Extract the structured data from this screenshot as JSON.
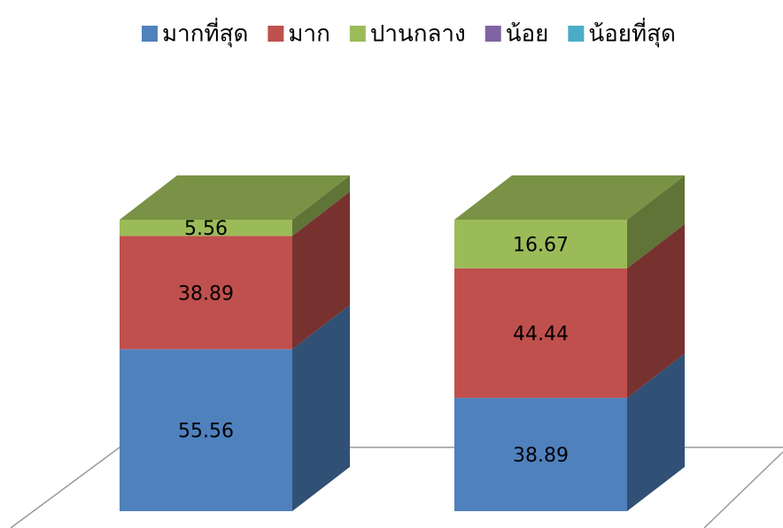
{
  "chart_data": {
    "type": "bar3d_stacked",
    "categories": [
      null,
      null
    ],
    "series": [
      {
        "name": "มากที่สุด",
        "color": "#4f81bd",
        "values": [
          55.56,
          38.89
        ]
      },
      {
        "name": "มาก",
        "color": "#c0504d",
        "values": [
          38.89,
          44.44
        ]
      },
      {
        "name": "ปานกลาง",
        "color": "#9bbb59",
        "values": [
          5.56,
          16.67
        ]
      },
      {
        "name": "น้อย",
        "color": "#8064a2",
        "values": [
          0,
          0
        ]
      },
      {
        "name": "น้อยที่สุด",
        "color": "#4bacc6",
        "values": [
          0,
          0
        ]
      }
    ],
    "legend": "top"
  }
}
